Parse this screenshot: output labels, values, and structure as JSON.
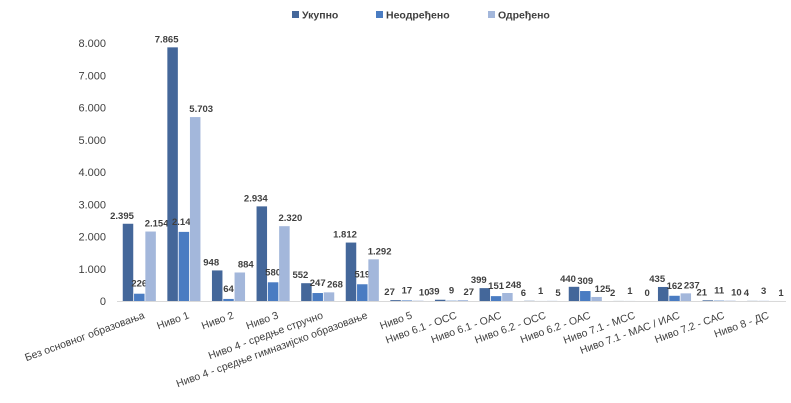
{
  "chart_data": {
    "type": "bar",
    "title": "",
    "xlabel": "",
    "ylabel": "",
    "ylim": [
      0,
      8000
    ],
    "yticks": [
      "0",
      "1.000",
      "2.000",
      "3.000",
      "4.000",
      "5.000",
      "6.000",
      "7.000",
      "8.000"
    ],
    "grid": false,
    "legend_position": "top",
    "categories": [
      "Без основног образовања",
      "Ниво 1",
      "Ниво 2",
      "Ниво 3",
      "Ниво 4 - средње стручно",
      "Ниво 4 - средње гимназијско образовање",
      "Ниво 5",
      "Ниво 6.1 - ОСС",
      "Ниво 6.1 - ОАС",
      "Ниво 6.2 - ОСС",
      "Ниво 6.2 - ОАС",
      "Ниво 7.1 - МСС",
      "Ниво 7.1 - МАС / ИАС",
      "Ниво 7.2 - САС",
      "Ниво 8 - ДС"
    ],
    "series": [
      {
        "name": "Укупно",
        "color": "#44679A",
        "values": [
          2395,
          7865,
          948,
          2934,
          552,
          1812,
          27,
          39,
          399,
          6,
          440,
          2,
          435,
          21,
          4
        ],
        "labels": [
          "2.395",
          "7.865",
          "948",
          "2.934",
          "552",
          "1.812",
          "27",
          "39",
          "399",
          "6",
          "440",
          "2",
          "435",
          "21",
          "4"
        ]
      },
      {
        "name": "Неодређено",
        "color": "#4A7CC2",
        "values": [
          226,
          2143,
          64,
          580,
          247,
          519,
          17,
          9,
          151,
          1,
          309,
          1,
          162,
          11,
          3
        ],
        "labels": [
          "226",
          "2.143",
          "64",
          "580",
          "247",
          "519",
          "17",
          "9",
          "151",
          "1",
          "309",
          "1",
          "162",
          "11",
          "3"
        ]
      },
      {
        "name": "Одређено",
        "color": "#A3B7DB",
        "values": [
          2154,
          5703,
          884,
          2320,
          268,
          1292,
          10,
          27,
          248,
          5,
          125,
          0,
          237,
          10,
          1
        ],
        "labels": [
          "2.154",
          "5.703",
          "884",
          "2.320",
          "268",
          "1.292",
          "10",
          "27",
          "248",
          "5",
          "125",
          "0",
          "237",
          "10",
          "1"
        ]
      }
    ]
  }
}
